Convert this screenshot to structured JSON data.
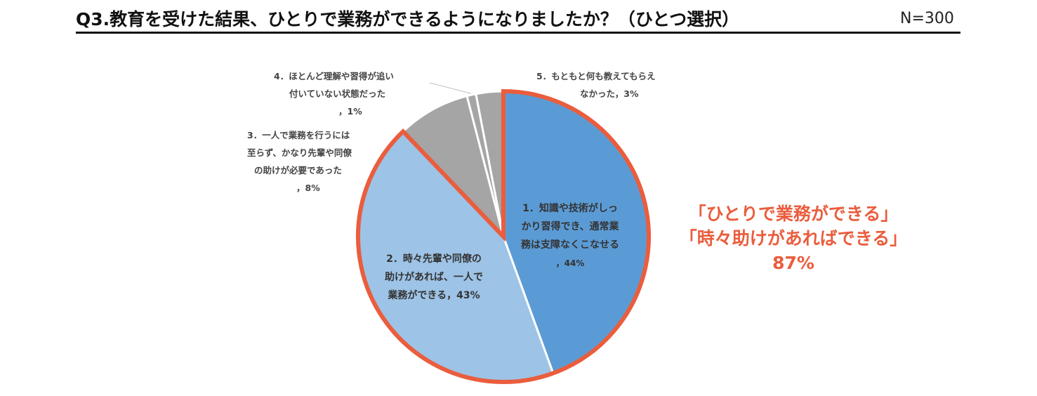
{
  "header": {
    "title": "Q3.教育を受けた結果、ひとりで業務ができるようになりましたか？（ひとつ選択）",
    "n_label": "N=300"
  },
  "chart_data": {
    "type": "pie",
    "title": "Q3.教育を受けた結果、ひとりで業務ができるようになりましたか？（ひとつ選択）",
    "slices": [
      {
        "lines": [
          "1．知識や技術がしっ",
          "かり習得でき、通常業",
          "務は支障なくこなせる"
        ],
        "pct_label": "，44%",
        "value": 44,
        "color": "#5b9bd5"
      },
      {
        "lines": [
          "2．時々先輩や同僚の",
          "助けがあれば、一人で",
          "業務ができる，43%"
        ],
        "pct_label": "",
        "value": 43,
        "color": "#9dc3e6"
      },
      {
        "lines": [
          "3．一人で業務を行うには",
          "至らず、かなり先輩や同僚",
          "の助けが必要であった"
        ],
        "pct_label": "，8%",
        "value": 8,
        "color": "#a5a5a5"
      },
      {
        "lines": [
          "4．ほとんど理解や習得が追い",
          "付いていない状態だった"
        ],
        "pct_label": "，1%",
        "value": 1,
        "color": "#a5a5a5"
      },
      {
        "lines": [
          "5．もともと何も教えてもらえ",
          "なかった，3%"
        ],
        "pct_label": "",
        "value": 3,
        "color": "#a5a5a5"
      }
    ],
    "highlight_color": "#ea5d3d"
  },
  "callout": {
    "line1": "「ひとりで業務ができる」",
    "line2": "「時々助けがあればできる」",
    "value": "87%"
  }
}
